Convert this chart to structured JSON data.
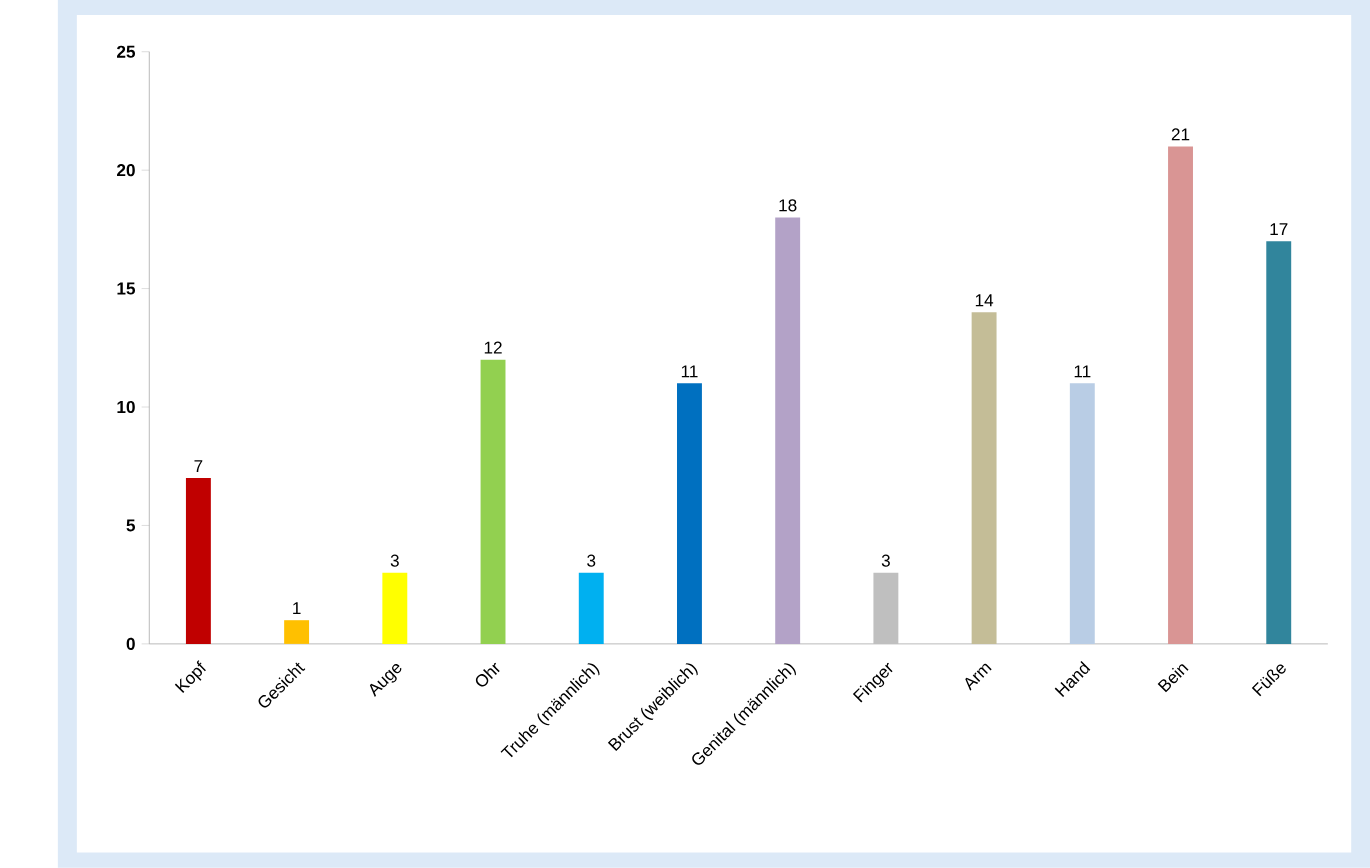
{
  "chart_data": {
    "type": "bar",
    "categories": [
      "Kopf",
      "Gesicht",
      "Auge",
      "Ohr",
      "Truhe (männlich)",
      "Brust (weiblich)",
      "Genital (männlich)",
      "Finger",
      "Arm",
      "Hand",
      "Bein",
      "Füße"
    ],
    "values": [
      7,
      1,
      3,
      12,
      3,
      11,
      18,
      3,
      14,
      11,
      21,
      17
    ],
    "colors": [
      "#c00000",
      "#ffc000",
      "#ffff00",
      "#92d050",
      "#00b0f0",
      "#0070c0",
      "#b3a2c7",
      "#bfbfbf",
      "#c4bd97",
      "#b9cde5",
      "#d99594",
      "#31859c"
    ],
    "ylim": [
      0,
      25
    ],
    "yticks": [
      0,
      5,
      10,
      15,
      20,
      25
    ],
    "data_labels": true,
    "grid": false,
    "legend": false
  }
}
